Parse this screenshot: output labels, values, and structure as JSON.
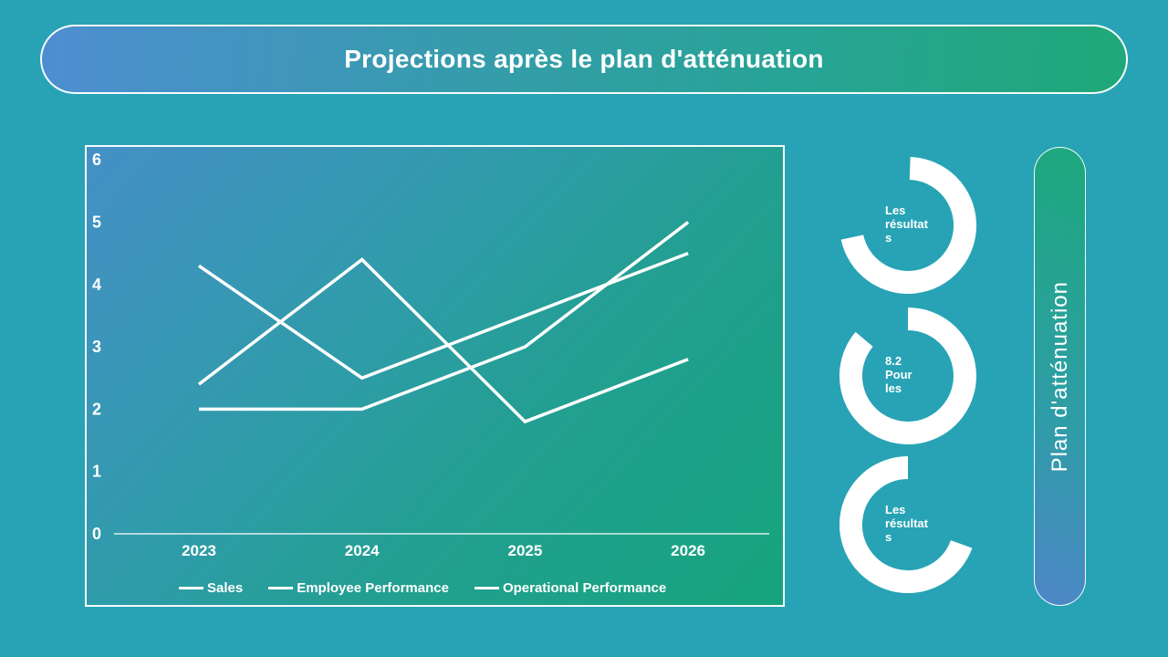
{
  "title": "Projections après le plan d'atténuation",
  "side_label": "Plan d'atténuation",
  "colors": {
    "background": "#27a3b5",
    "accent_blue": "#4e8ed1",
    "accent_green": "#1fa878",
    "line": "#ffffff",
    "text": "#ffffff"
  },
  "chart_data": {
    "type": "line",
    "categories": [
      "2023",
      "2024",
      "2025",
      "2026"
    ],
    "series": [
      {
        "name": "Sales",
        "values": [
          4.3,
          2.5,
          3.5,
          4.5
        ]
      },
      {
        "name": "Employee Performance",
        "values": [
          2.4,
          4.4,
          1.8,
          2.8
        ]
      },
      {
        "name": "Operational Performance",
        "values": [
          2.0,
          2.0,
          3.0,
          5.0
        ]
      }
    ],
    "title": "",
    "xlabel": "",
    "ylabel": "",
    "ylim": [
      0,
      6
    ],
    "yticks": [
      0,
      1,
      2,
      3,
      4,
      5,
      6
    ],
    "grid": false,
    "line_color": "#ffffff",
    "legend_position": "bottom"
  },
  "stats": [
    {
      "lines": [
        "Les",
        "résultat",
        "s"
      ]
    },
    {
      "lines": [
        "8.2",
        "Pour",
        "les"
      ]
    },
    {
      "lines": [
        "Les",
        "résultat",
        "s"
      ]
    }
  ]
}
